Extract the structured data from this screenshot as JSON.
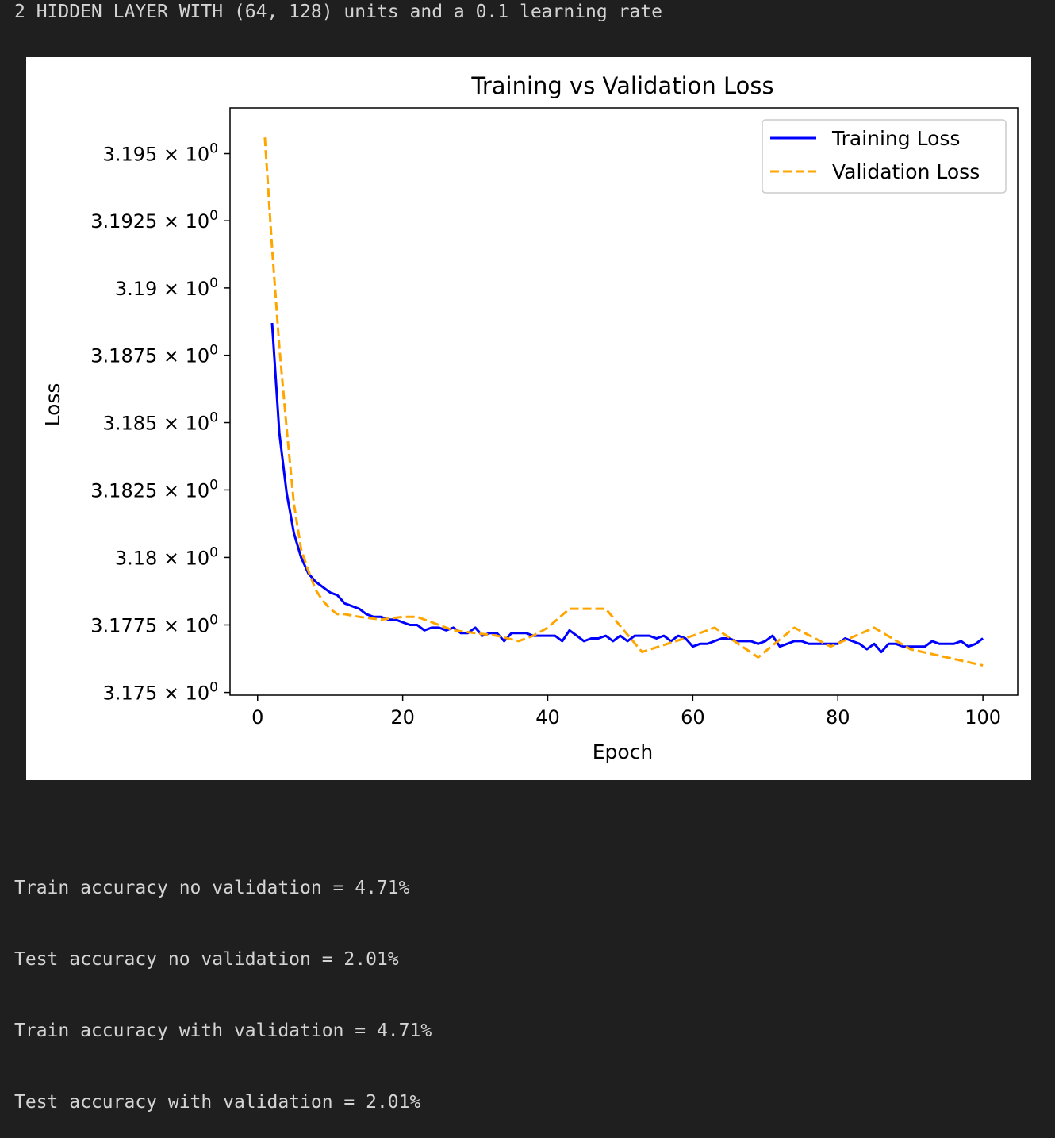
{
  "header_text": "2 HIDDEN LAYER WITH (64, 128) units and a 0.1 learning rate",
  "results": [
    "Train accuracy no validation = 4.71%",
    "Test accuracy no validation = 2.01%",
    "Train accuracy with validation = 4.71%",
    "Test accuracy with validation = 2.01%"
  ],
  "chart_data": {
    "type": "line",
    "title": "Training vs Validation Loss",
    "xlabel": "Epoch",
    "ylabel": "Loss",
    "xlim": [
      -3.8,
      104.8
    ],
    "ylim": [
      3.1749,
      3.1967
    ],
    "yscale": "log",
    "xticks": [
      0,
      20,
      40,
      60,
      80,
      100
    ],
    "yticks": [
      {
        "value": 3.175,
        "mantissa": "3.175",
        "base": "10",
        "exp": "0"
      },
      {
        "value": 3.1775,
        "mantissa": "3.1775",
        "base": "10",
        "exp": "0"
      },
      {
        "value": 3.18,
        "mantissa": "3.18",
        "base": "10",
        "exp": "0"
      },
      {
        "value": 3.1825,
        "mantissa": "3.1825",
        "base": "10",
        "exp": "0"
      },
      {
        "value": 3.185,
        "mantissa": "3.185",
        "base": "10",
        "exp": "0"
      },
      {
        "value": 3.1875,
        "mantissa": "3.1875",
        "base": "10",
        "exp": "0"
      },
      {
        "value": 3.19,
        "mantissa": "3.19",
        "base": "10",
        "exp": "0"
      },
      {
        "value": 3.1925,
        "mantissa": "3.1925",
        "base": "10",
        "exp": "0"
      },
      {
        "value": 3.195,
        "mantissa": "3.195",
        "base": "10",
        "exp": "0"
      }
    ],
    "grid": false,
    "legend_position": "upper right",
    "series": [
      {
        "name": "Training Loss",
        "color": "#0000ff",
        "style": "solid",
        "x": [
          2,
          3,
          4,
          5,
          6,
          7,
          8,
          9,
          10,
          11,
          12,
          13,
          14,
          15,
          16,
          17,
          18,
          19,
          20,
          21,
          22,
          23,
          24,
          25,
          26,
          27,
          28,
          29,
          30,
          31,
          32,
          33,
          34,
          35,
          36,
          37,
          38,
          39,
          40,
          41,
          42,
          43,
          44,
          45,
          46,
          47,
          48,
          49,
          50,
          51,
          52,
          53,
          54,
          55,
          56,
          57,
          58,
          59,
          60,
          61,
          62,
          63,
          64,
          65,
          66,
          67,
          68,
          69,
          70,
          71,
          72,
          73,
          74,
          75,
          76,
          77,
          78,
          79,
          80,
          81,
          82,
          83,
          84,
          85,
          86,
          87,
          88,
          89,
          90,
          91,
          92,
          93,
          94,
          95,
          96,
          97,
          98,
          99,
          100
        ],
        "y": [
          3.1887,
          3.1846,
          3.1824,
          3.1809,
          3.18,
          3.1794,
          3.1791,
          3.1789,
          3.1787,
          3.1786,
          3.1783,
          3.1782,
          3.1781,
          3.1779,
          3.1778,
          3.1778,
          3.1777,
          3.1777,
          3.1776,
          3.1775,
          3.1775,
          3.1773,
          3.1774,
          3.1774,
          3.1773,
          3.1774,
          3.1772,
          3.1772,
          3.1774,
          3.1771,
          3.1772,
          3.1772,
          3.1769,
          3.1772,
          3.1772,
          3.1772,
          3.1771,
          3.1771,
          3.1771,
          3.1771,
          3.1769,
          3.1773,
          3.1771,
          3.1769,
          3.177,
          3.177,
          3.1771,
          3.1769,
          3.1771,
          3.1769,
          3.1771,
          3.1771,
          3.1771,
          3.177,
          3.1771,
          3.1769,
          3.1771,
          3.177,
          3.1767,
          3.1768,
          3.1768,
          3.1769,
          3.177,
          3.177,
          3.1769,
          3.1769,
          3.1769,
          3.1768,
          3.1769,
          3.1771,
          3.1767,
          3.1768,
          3.1769,
          3.1769,
          3.1768,
          3.1768,
          3.1768,
          3.1768,
          3.1768,
          3.177,
          3.1769,
          3.1768,
          3.1766,
          3.1768,
          3.1765,
          3.1768,
          3.1768,
          3.1767,
          3.1767,
          3.1767,
          3.1767,
          3.1769,
          3.1768,
          3.1768,
          3.1768,
          3.1769,
          3.1767,
          3.1768,
          3.177
        ]
      },
      {
        "name": "Validation Loss",
        "color": "#ffa500",
        "style": "dashed",
        "x": [
          1,
          2,
          3,
          4,
          5,
          6,
          7,
          8,
          9,
          10,
          11,
          12,
          14,
          17,
          20,
          22,
          24,
          27,
          30,
          33,
          36,
          38,
          40,
          43,
          45,
          48,
          53,
          60,
          63,
          69,
          74,
          79,
          85,
          90,
          95,
          100
        ],
        "y": [
          3.1956,
          3.1915,
          3.1878,
          3.1848,
          3.182,
          3.1803,
          3.1795,
          3.1788,
          3.1784,
          3.1781,
          3.1779,
          3.1779,
          3.1778,
          3.1777,
          3.1778,
          3.1778,
          3.1776,
          3.1773,
          3.1772,
          3.1771,
          3.1769,
          3.1771,
          3.1774,
          3.1781,
          3.1781,
          3.1781,
          3.1765,
          3.1771,
          3.1774,
          3.1763,
          3.1774,
          3.1767,
          3.1774,
          3.1766,
          3.1763,
          3.176
        ]
      }
    ]
  }
}
